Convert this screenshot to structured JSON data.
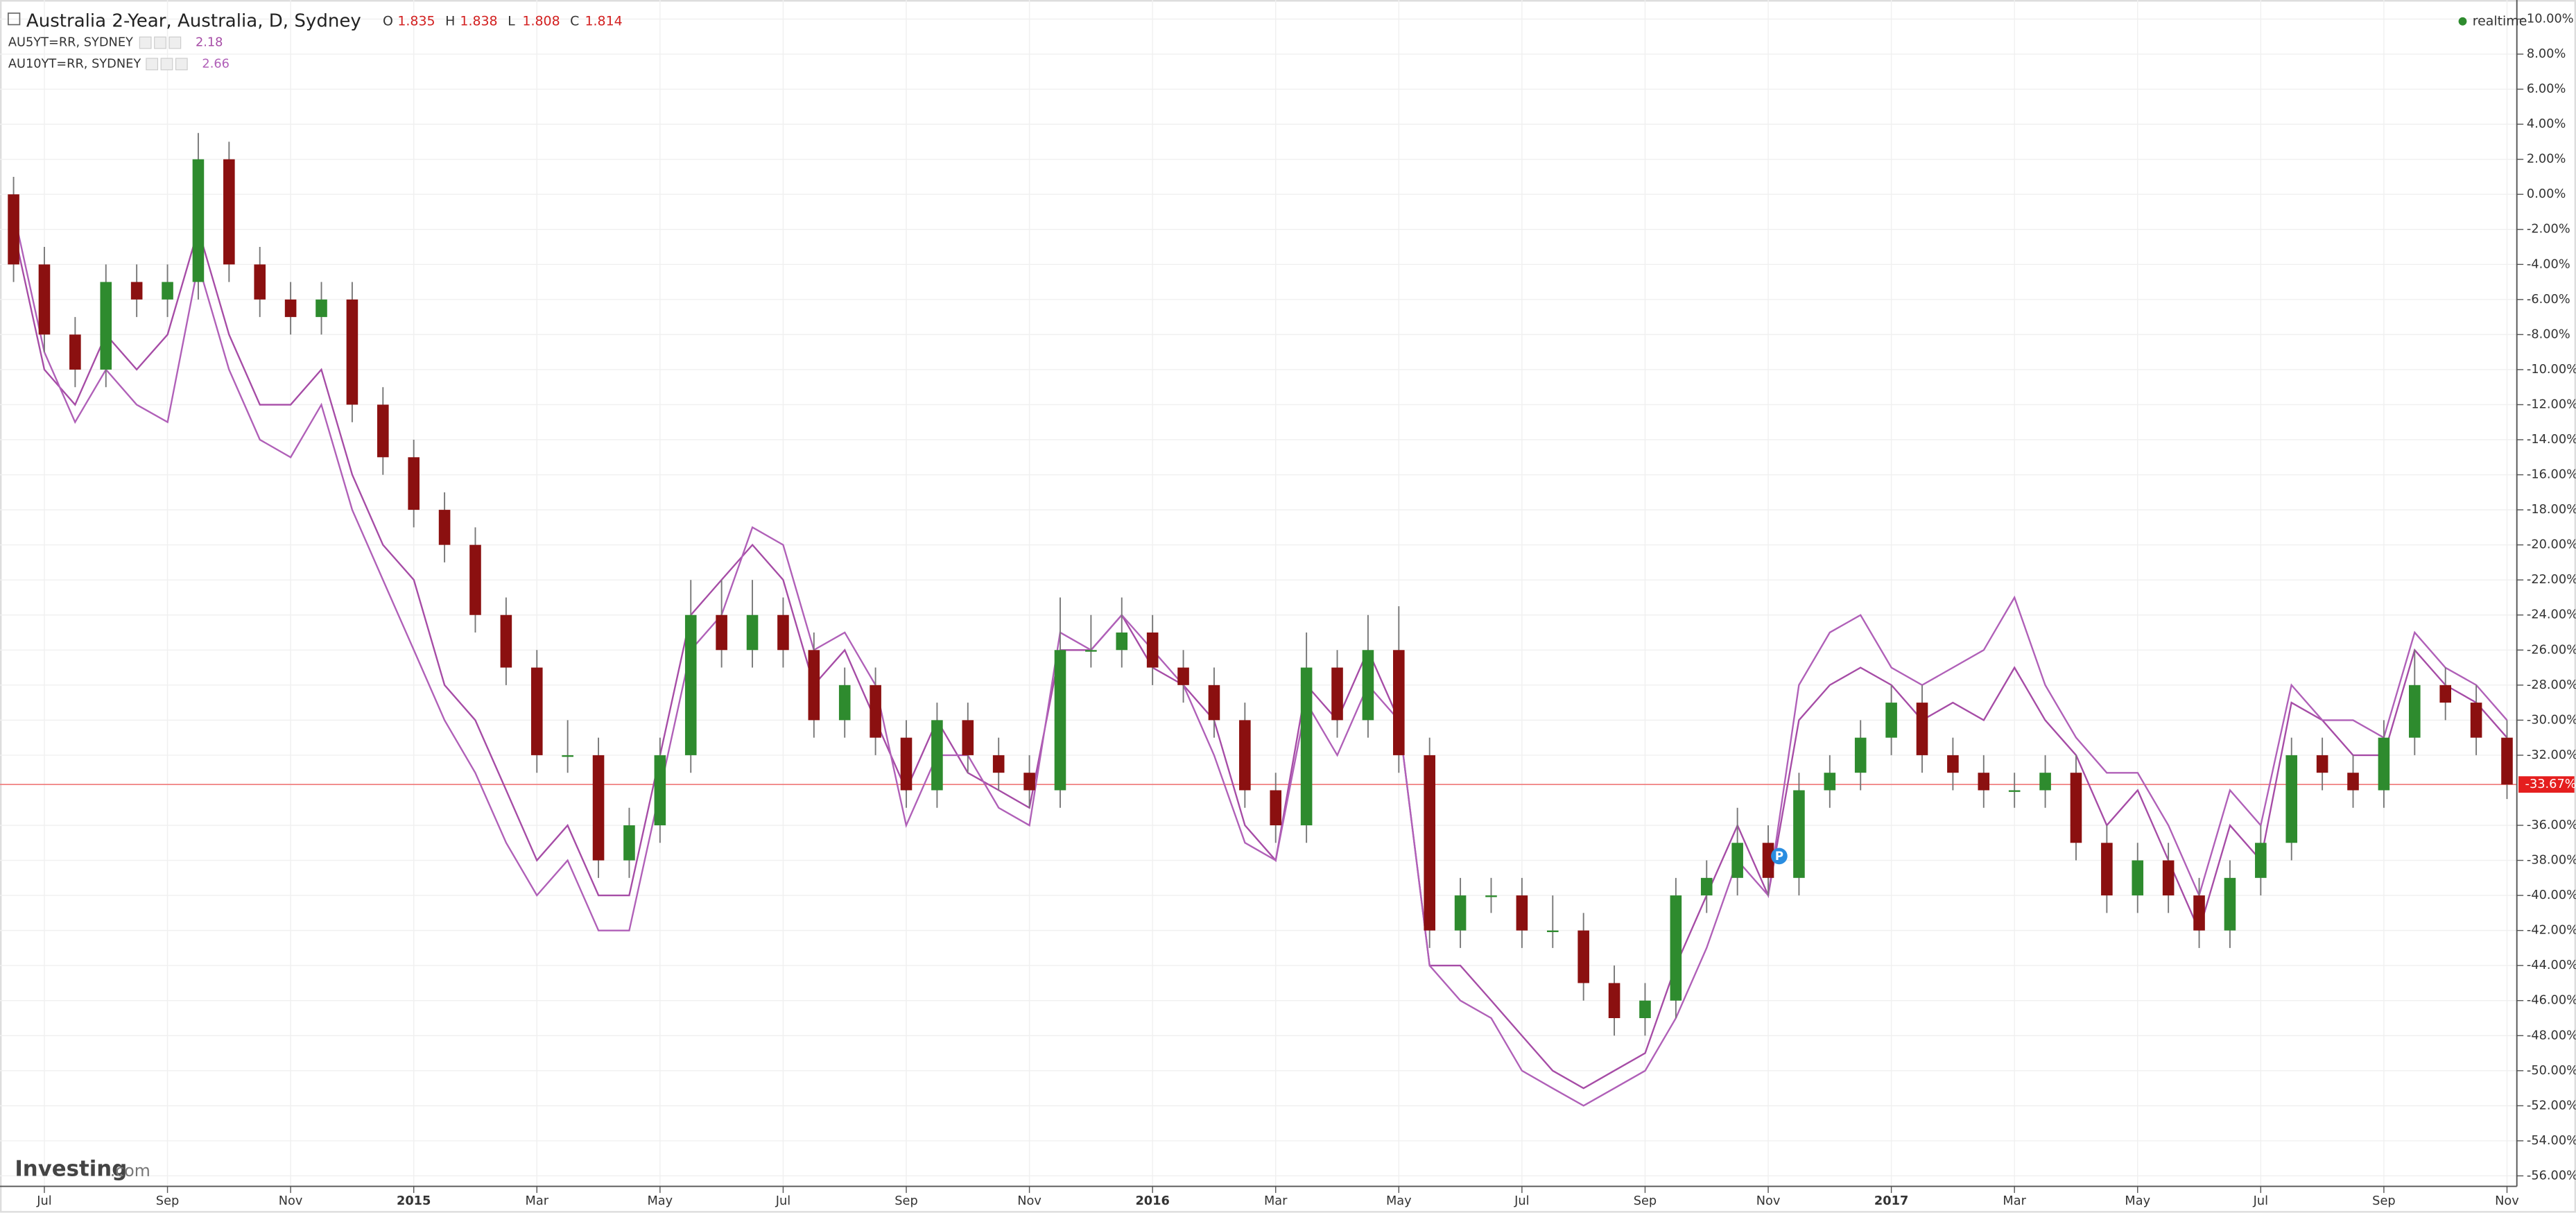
{
  "chart_data": {
    "type": "candlestick",
    "title": "Australia 2-Year, Australia, D, Sydney",
    "ohlc_legend": [
      {
        "label": "O",
        "value": 1.835
      },
      {
        "label": "H",
        "value": 1.838
      },
      {
        "label": "L",
        "value": 1.808
      },
      {
        "label": "C",
        "value": 1.814
      }
    ],
    "realtime": "realtime",
    "logo": "Investing",
    "logo_suffix": ".com",
    "marker_label": "P",
    "categories": [
      null,
      "Jul",
      null,
      null,
      null,
      "Sep",
      null,
      null,
      null,
      "Nov",
      null,
      null,
      null,
      "2015",
      null,
      null,
      null,
      "Mar",
      null,
      null,
      null,
      "May",
      null,
      null,
      null,
      "Jul",
      null,
      null,
      null,
      "Sep",
      null,
      null,
      null,
      "Nov",
      null,
      null,
      null,
      "2016",
      null,
      null,
      null,
      "Mar",
      null,
      null,
      null,
      "May",
      null,
      null,
      null,
      "Jul",
      null,
      null,
      null,
      "Sep",
      null,
      null,
      null,
      "Nov",
      null,
      null,
      null,
      "2017",
      null,
      null,
      null,
      "Mar",
      null,
      null,
      null,
      "May",
      null,
      null,
      null,
      "Jul",
      null,
      null,
      null,
      "Sep",
      null,
      null,
      null,
      "Nov"
    ],
    "open": [
      0,
      -4,
      -8,
      -10,
      -5,
      -6,
      -5,
      2,
      -4,
      -6,
      -7,
      -6,
      -12,
      -15,
      -18,
      -20,
      -24,
      -27,
      -32,
      -32,
      -38,
      -36,
      -32,
      -24,
      -26,
      -24,
      -26,
      -30,
      -28,
      -31,
      -34,
      -30,
      -32,
      -33,
      -34,
      -26,
      -26,
      -25,
      -27,
      -28,
      -30,
      -34,
      -36,
      -27,
      -30,
      -26,
      -32,
      -42,
      -40,
      -40,
      -42,
      -42,
      -45,
      -47,
      -46,
      -40,
      -39,
      -37,
      -39,
      -34,
      -33,
      -31,
      -29,
      -32,
      -33,
      -34,
      -34,
      -33,
      -37,
      -40,
      -38,
      -40,
      -42,
      -39,
      -37,
      -32,
      -33,
      -34,
      -31,
      -28,
      -29,
      -31
    ],
    "high": [
      1,
      -3,
      -7,
      -4,
      -4,
      -4,
      3.5,
      3,
      -3,
      -5,
      -5,
      -5,
      -11,
      -14,
      -17,
      -19,
      -23,
      -26,
      -30,
      -31,
      -35,
      -31,
      -22,
      -22,
      -22,
      -23,
      -25,
      -27,
      -27,
      -30,
      -29,
      -29,
      -31,
      -32,
      -23,
      -24,
      -23,
      -24,
      -26,
      -27,
      -29,
      -33,
      -25,
      -26,
      -24,
      -23.5,
      -31,
      -39,
      -39,
      -39,
      -40,
      -41,
      -44,
      -45,
      -39,
      -38,
      -35,
      -36,
      -33,
      -32,
      -30,
      -28,
      -28,
      -31,
      -32,
      -33,
      -32,
      -32,
      -36,
      -37,
      -37,
      -39,
      -38,
      -36,
      -31,
      -31,
      -32,
      -30,
      -26,
      -27,
      -28,
      -30
    ],
    "low": [
      -5,
      -9,
      -11,
      -11,
      -7,
      -7,
      -6,
      -5,
      -7,
      -8,
      -8,
      -13,
      -16,
      -19,
      -21,
      -25,
      -28,
      -33,
      -33,
      -39,
      -39,
      -37,
      -33,
      -27,
      -27,
      -27,
      -31,
      -31,
      -32,
      -35,
      -35,
      -33,
      -34,
      -35,
      -35,
      -27,
      -27,
      -28,
      -29,
      -31,
      -35,
      -37,
      -37,
      -31,
      -31,
      -33,
      -43,
      -43,
      -41,
      -43,
      -43,
      -46,
      -48,
      -48,
      -47,
      -41,
      -40,
      -40,
      -40,
      -35,
      -34,
      -32,
      -33,
      -34,
      -35,
      -35,
      -35,
      -38,
      -41,
      -41,
      -41,
      -43,
      -43,
      -40,
      -38,
      -34,
      -35,
      -35,
      -32,
      -30,
      -32,
      -34.5
    ],
    "close": [
      -4,
      -8,
      -10,
      -5,
      -6,
      -5,
      2,
      -4,
      -6,
      -7,
      -6,
      -12,
      -15,
      -18,
      -20,
      -24,
      -27,
      -32,
      -32,
      -38,
      -36,
      -32,
      -24,
      -26,
      -24,
      -26,
      -30,
      -28,
      -31,
      -34,
      -30,
      -32,
      -33,
      -34,
      -26,
      -26,
      -25,
      -27,
      -28,
      -30,
      -34,
      -36,
      -27,
      -30,
      -26,
      -32,
      -42,
      -40,
      -40,
      -42,
      -42,
      -45,
      -47,
      -46,
      -40,
      -39,
      -37,
      -39,
      -34,
      -33,
      -31,
      -29,
      -32,
      -33,
      -34,
      -34,
      -33,
      -37,
      -40,
      -38,
      -40,
      -42,
      -39,
      -37,
      -32,
      -33,
      -34,
      -31,
      -28,
      -29,
      -31,
      -33.67
    ],
    "up_color": "#2e8b2e",
    "down_color": "#8b1010",
    "series": [
      {
        "name": "AU5YT=RR, SYDNEY",
        "last": 2.18,
        "color": "#a64ca6",
        "values": [
          -2,
          -10,
          -12,
          -8,
          -10,
          -8,
          -2,
          -8,
          -12,
          -12,
          -10,
          -16,
          -20,
          -22,
          -28,
          -30,
          -34,
          -38,
          -36,
          -40,
          -40,
          -32,
          -24,
          -22,
          -20,
          -22,
          -28,
          -26,
          -30,
          -34,
          -30,
          -33,
          -34,
          -35,
          -26,
          -26,
          -24,
          -27,
          -28,
          -30,
          -36,
          -38,
          -28,
          -30,
          -26,
          -30,
          -44,
          -44,
          -46,
          -48,
          -50,
          -51,
          -50,
          -49,
          -44,
          -40,
          -36,
          -40,
          -30,
          -28,
          -27,
          -28,
          -30,
          -29,
          -30,
          -27,
          -30,
          -32,
          -36,
          -34,
          -38,
          -42,
          -36,
          -38,
          -29,
          -30,
          -32,
          -32,
          -26,
          -28,
          -29,
          -31
        ]
      },
      {
        "name": "AU10YT=RR, SYDNEY",
        "last": 2.66,
        "color": "#b060b8",
        "values": [
          -1,
          -9,
          -13,
          -10,
          -12,
          -13,
          -4,
          -10,
          -14,
          -15,
          -12,
          -18,
          -22,
          -26,
          -30,
          -33,
          -37,
          -40,
          -38,
          -42,
          -42,
          -34,
          -26,
          -24,
          -19,
          -20,
          -26,
          -25,
          -28,
          -36,
          -32,
          -32,
          -35,
          -36,
          -25,
          -26,
          -24,
          -26,
          -28,
          -32,
          -37,
          -38,
          -29,
          -32,
          -28,
          -30,
          -44,
          -46,
          -47,
          -50,
          -51,
          -52,
          -51,
          -50,
          -47,
          -43,
          -38,
          -40,
          -28,
          -25,
          -24,
          -27,
          -28,
          -27,
          -26,
          -23,
          -28,
          -31,
          -33,
          -33,
          -36,
          -40,
          -34,
          -36,
          -28,
          -30,
          -30,
          -31,
          -25,
          -27,
          -28,
          -30
        ]
      }
    ],
    "ylim": [
      -56.6,
      10.9
    ],
    "yticks": [
      {
        "value": 10,
        "label": "10.00%"
      },
      {
        "value": 8,
        "label": "8.00%"
      },
      {
        "value": 6,
        "label": "6.00%"
      },
      {
        "value": 4,
        "label": "4.00%"
      },
      {
        "value": 2,
        "label": "2.00%"
      },
      {
        "value": 0,
        "label": "0.00%"
      },
      {
        "value": -2,
        "label": "-2.00%"
      },
      {
        "value": -4,
        "label": "-4.00%"
      },
      {
        "value": -6,
        "label": "-6.00%"
      },
      {
        "value": -8,
        "label": "-8.00%"
      },
      {
        "value": -10,
        "label": "-10.00%"
      },
      {
        "value": -12,
        "label": "-12.00%"
      },
      {
        "value": -14,
        "label": "-14.00%"
      },
      {
        "value": -16,
        "label": "-16.00%"
      },
      {
        "value": -18,
        "label": "-18.00%"
      },
      {
        "value": -20,
        "label": "-20.00%"
      },
      {
        "value": -22,
        "label": "-22.00%"
      },
      {
        "value": -24,
        "label": "-24.00%"
      },
      {
        "value": -26,
        "label": "-26.00%"
      },
      {
        "value": -28,
        "label": "-28.00%"
      },
      {
        "value": -30,
        "label": "-30.00%"
      },
      {
        "value": -32,
        "label": "-32.00%"
      },
      {
        "value": -36,
        "label": "-36.00%"
      },
      {
        "value": -38,
        "label": "-38.00%"
      },
      {
        "value": -40,
        "label": "-40.00%"
      },
      {
        "value": -42,
        "label": "-42.00%"
      },
      {
        "value": -44,
        "label": "-44.00%"
      },
      {
        "value": -46,
        "label": "-46.00%"
      },
      {
        "value": -48,
        "label": "-48.00%"
      },
      {
        "value": -50,
        "label": "-50.00%"
      },
      {
        "value": -52,
        "label": "-52.00%"
      },
      {
        "value": -54,
        "label": "-54.00%"
      },
      {
        "value": -56,
        "label": "-56.00%"
      }
    ],
    "last_value_label": {
      "value": -33.67,
      "label": "-33.67%"
    },
    "grid": true
  }
}
